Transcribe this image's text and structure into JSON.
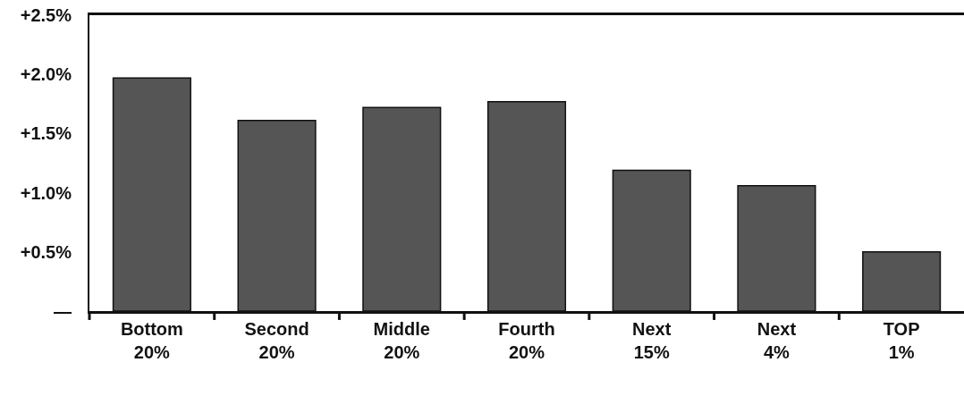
{
  "chart_data": {
    "type": "bar",
    "categories": [
      "Bottom\n20%",
      "Second\n20%",
      "Middle\n20%",
      "Fourth\n20%",
      "Next\n15%",
      "Next\n4%",
      "TOP\n1%"
    ],
    "values": [
      1.97,
      1.61,
      1.72,
      1.77,
      1.19,
      1.06,
      0.5
    ],
    "color": "#555555",
    "ylim": [
      0,
      2.5
    ],
    "yticks": [
      {
        "value": 0,
        "label": "—"
      },
      {
        "value": 0.5,
        "label": "+0.5%"
      },
      {
        "value": 1,
        "label": "+1.0%"
      },
      {
        "value": 1.5,
        "label": "+1.5%"
      },
      {
        "value": 2,
        "label": "+2.0%"
      },
      {
        "value": 2.5,
        "label": "+2.5%"
      }
    ],
    "grid": false
  }
}
